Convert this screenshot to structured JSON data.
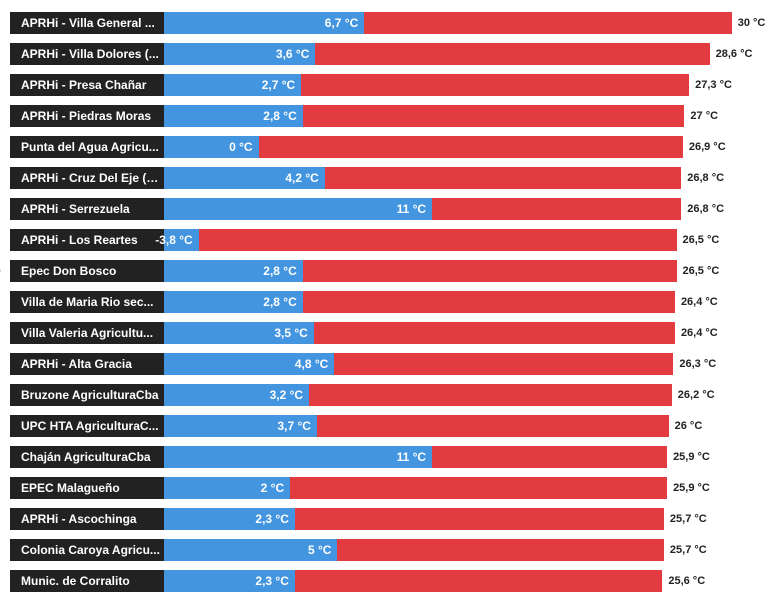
{
  "chart_data": {
    "type": "bar",
    "orientation": "horizontal",
    "unit": "°C",
    "series_colors": {
      "min": "#4395e0",
      "max": "#e23c41"
    },
    "axis": {
      "min": -6,
      "max": 30
    },
    "rows": [
      {
        "label": "APRHi - Villa General ...",
        "min": 6.7,
        "max": 30,
        "min_label": "6,7 °C",
        "max_label": "30 °C"
      },
      {
        "label": "APRHi - Villa Dolores (...",
        "min": 3.6,
        "max": 28.6,
        "min_label": "3,6 °C",
        "max_label": "28,6 °C"
      },
      {
        "label": "APRHi - Presa Chañar",
        "min": 2.7,
        "max": 27.3,
        "min_label": "2,7 °C",
        "max_label": "27,3 °C"
      },
      {
        "label": "APRHi - Piedras Moras",
        "min": 2.8,
        "max": 27,
        "min_label": "2,8 °C",
        "max_label": "27 °C"
      },
      {
        "label": "Punta del Agua Agricu...",
        "min": 0,
        "max": 26.9,
        "min_label": "0 °C",
        "max_label": "26,9 °C"
      },
      {
        "label": "APRHi - Cruz Del Eje (D...",
        "min": 4.2,
        "max": 26.8,
        "min_label": "4,2 °C",
        "max_label": "26,8 °C"
      },
      {
        "label": "APRHi - Serrezuela",
        "min": 11,
        "max": 26.8,
        "min_label": "11 °C",
        "max_label": "26,8 °C"
      },
      {
        "label": "APRHi - Los Reartes",
        "min": -3.8,
        "max": 26.5,
        "min_label": "-3,8 °C",
        "max_label": "26,5 °C"
      },
      {
        "label": "Epec Don Bosco",
        "min": 2.8,
        "max": 26.5,
        "min_label": "2,8 °C",
        "max_label": "26,5 °C"
      },
      {
        "label": "Villa de Maria Rio sec...",
        "min": 2.8,
        "max": 26.4,
        "min_label": "2,8 °C",
        "max_label": "26,4 °C"
      },
      {
        "label": "Villa Valeria Agricultu...",
        "min": 3.5,
        "max": 26.4,
        "min_label": "3,5 °C",
        "max_label": "26,4 °C"
      },
      {
        "label": "APRHi - Alta Gracia",
        "min": 4.8,
        "max": 26.3,
        "min_label": "4,8 °C",
        "max_label": "26,3 °C"
      },
      {
        "label": "Bruzone AgriculturaCba",
        "min": 3.2,
        "max": 26.2,
        "min_label": "3,2 °C",
        "max_label": "26,2 °C"
      },
      {
        "label": "UPC HTA AgriculturaC...",
        "min": 3.7,
        "max": 26,
        "min_label": "3,7 °C",
        "max_label": "26 °C"
      },
      {
        "label": "Chaján AgriculturaCba",
        "min": 11,
        "max": 25.9,
        "min_label": "11 °C",
        "max_label": "25,9 °C"
      },
      {
        "label": "EPEC Malagueño",
        "min": 2,
        "max": 25.9,
        "min_label": "2 °C",
        "max_label": "25,9 °C"
      },
      {
        "label": "APRHi - Ascochinga",
        "min": 2.3,
        "max": 25.7,
        "min_label": "2,3 °C",
        "max_label": "25,7 °C"
      },
      {
        "label": "Colonia Caroya Agricu...",
        "min": 5,
        "max": 25.7,
        "min_label": "5 °C",
        "max_label": "25,7 °C"
      },
      {
        "label": "Munic. de Corralito",
        "min": 2.3,
        "max": 25.6,
        "min_label": "2,3 °C",
        "max_label": "25,6 °C"
      }
    ]
  }
}
